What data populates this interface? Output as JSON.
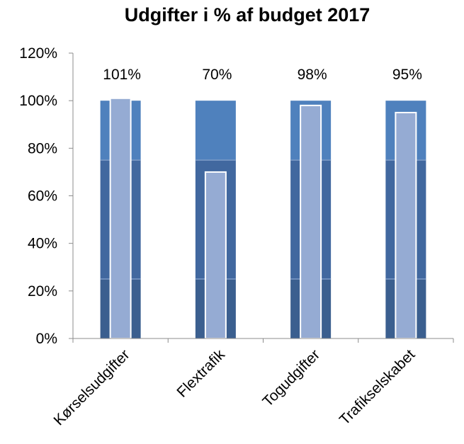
{
  "chart_data": {
    "type": "bar",
    "title": "Udgifter i % af budget 2017",
    "xlabel": "",
    "ylabel": "",
    "categories": [
      "Kørselsudgifter",
      "Flextrafik",
      "Togudgifter",
      "Trafikselskabet"
    ],
    "series": [
      {
        "values": [
          101,
          70,
          98,
          95
        ],
        "data_labels": [
          "101%",
          "70%",
          "98%",
          "95%"
        ]
      }
    ],
    "background_bands": [
      {
        "from": 0,
        "to": 25,
        "color": "#3b5f8f"
      },
      {
        "from": 25,
        "to": 75,
        "color": "#41689f"
      },
      {
        "from": 75,
        "to": 100,
        "color": "#4f81bd"
      }
    ],
    "bar_color": "#95abd3",
    "ylim": [
      0,
      120
    ],
    "yticks": [
      0,
      20,
      40,
      60,
      80,
      100,
      120
    ],
    "ytick_labels": [
      "0%",
      "20%",
      "40%",
      "60%",
      "80%",
      "100%",
      "120%"
    ],
    "grid": false,
    "legend": "none"
  }
}
